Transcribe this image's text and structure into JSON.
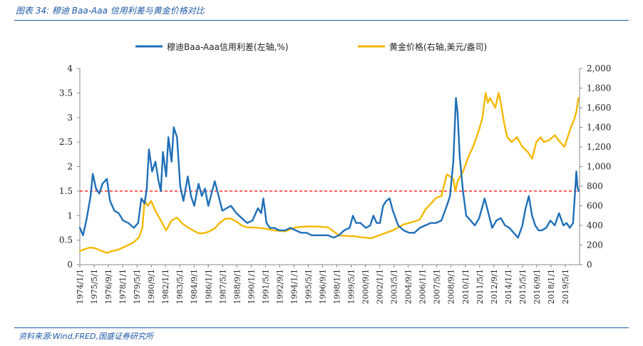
{
  "header": {
    "title": "图表 34:  穆迪 Baa-Aaa 信用利差与黄金价格对比"
  },
  "footer": {
    "source": "资料来源:Wind,FRED,国盛证券研究所"
  },
  "chart_data": {
    "type": "line",
    "title": "",
    "legend_position": "top",
    "grid": false,
    "x_tick_labels": [
      "1974/1/1",
      "1975/5/1",
      "1976/9/1",
      "1978/1/1",
      "1979/5/1",
      "1980/9/1",
      "1982/1/1",
      "1983/5/1",
      "1984/9/1",
      "1986/1/1",
      "1987/5/1",
      "1988/9/1",
      "1990/1/1",
      "1991/5/1",
      "1992/9/1",
      "1994/1/1",
      "1995/5/1",
      "1996/9/1",
      "1998/1/1",
      "1999/5/1",
      "2000/9/1",
      "2002/1/1",
      "2003/5/1",
      "2004/9/1",
      "2006/1/1",
      "2007/5/1",
      "2008/9/1",
      "2010/1/1",
      "2011/5/1",
      "2012/9/1",
      "2014/1/1",
      "2015/5/1",
      "2016/9/1",
      "2018/1/1",
      "2019/5/1"
    ],
    "x_range": [
      1974.0,
      2020.3
    ],
    "y_left": {
      "range": [
        0,
        4
      ],
      "ticks": [
        "0",
        "0.5",
        "1",
        "1.5",
        "2",
        "2.5",
        "3",
        "3.5",
        "4"
      ]
    },
    "y_right": {
      "range": [
        0,
        2000
      ],
      "ticks": [
        "0",
        "200",
        "400",
        "600",
        "800",
        "1,000",
        "1,200",
        "1,400",
        "1,600",
        "1,800",
        "2,000"
      ]
    },
    "reference_line": {
      "value": 1.5,
      "axis": "left",
      "color": "#ff0000",
      "style": "dashed"
    },
    "series": [
      {
        "name": "穆迪Baa-Aaa信用利差(左轴,%)",
        "axis": "left",
        "color": "#1f6fb8",
        "x": [
          1974.0,
          1974.3,
          1974.6,
          1975.0,
          1975.2,
          1975.5,
          1975.8,
          1976.1,
          1976.5,
          1976.8,
          1977.2,
          1977.6,
          1978.0,
          1978.5,
          1979.0,
          1979.4,
          1979.7,
          1980.0,
          1980.2,
          1980.4,
          1980.7,
          1981.0,
          1981.3,
          1981.5,
          1981.7,
          1982.0,
          1982.2,
          1982.5,
          1982.7,
          1983.0,
          1983.3,
          1983.6,
          1984.0,
          1984.3,
          1984.6,
          1985.0,
          1985.3,
          1985.6,
          1985.9,
          1986.2,
          1986.5,
          1986.8,
          1987.2,
          1987.6,
          1988.0,
          1988.5,
          1989.0,
          1989.5,
          1990.0,
          1990.5,
          1990.8,
          1991.0,
          1991.3,
          1991.6,
          1992.0,
          1992.5,
          1993.0,
          1993.5,
          1994.0,
          1994.5,
          1995.0,
          1995.5,
          1996.0,
          1996.5,
          1997.0,
          1997.5,
          1998.0,
          1998.5,
          1999.0,
          1999.3,
          1999.6,
          2000.0,
          2000.5,
          2000.9,
          2001.2,
          2001.5,
          2001.8,
          2002.1,
          2002.4,
          2002.7,
          2003.0,
          2003.5,
          2004.0,
          2004.5,
          2005.0,
          2005.5,
          2006.0,
          2006.5,
          2007.0,
          2007.5,
          2008.0,
          2008.3,
          2008.6,
          2008.85,
          2009.0,
          2009.2,
          2009.5,
          2009.8,
          2010.2,
          2010.6,
          2011.0,
          2011.5,
          2011.8,
          2012.2,
          2012.6,
          2013.0,
          2013.4,
          2013.8,
          2014.2,
          2014.6,
          2015.0,
          2015.3,
          2015.6,
          2015.9,
          2016.2,
          2016.5,
          2016.8,
          2017.2,
          2017.6,
          2018.0,
          2018.4,
          2018.8,
          2019.1,
          2019.4,
          2019.7,
          2020.0,
          2020.1,
          2020.2
        ],
        "values": [
          0.75,
          0.6,
          0.9,
          1.4,
          1.85,
          1.55,
          1.45,
          1.65,
          1.75,
          1.3,
          1.1,
          1.05,
          0.9,
          0.85,
          0.75,
          0.85,
          1.35,
          1.25,
          1.55,
          2.35,
          1.9,
          2.1,
          1.7,
          1.5,
          2.3,
          1.8,
          2.6,
          2.1,
          2.8,
          2.6,
          1.6,
          1.3,
          1.8,
          1.4,
          1.2,
          1.65,
          1.4,
          1.55,
          1.2,
          1.45,
          1.7,
          1.45,
          1.1,
          1.15,
          1.2,
          1.05,
          0.95,
          0.85,
          0.9,
          1.15,
          1.05,
          1.35,
          0.85,
          0.75,
          0.75,
          0.7,
          0.7,
          0.75,
          0.7,
          0.65,
          0.65,
          0.6,
          0.6,
          0.6,
          0.6,
          0.55,
          0.6,
          0.7,
          0.75,
          1.0,
          0.85,
          0.85,
          0.75,
          0.8,
          1.0,
          0.85,
          0.85,
          1.2,
          1.3,
          1.35,
          1.1,
          0.8,
          0.7,
          0.65,
          0.65,
          0.75,
          0.8,
          0.85,
          0.85,
          0.9,
          1.2,
          1.4,
          2.1,
          3.4,
          3.1,
          2.2,
          1.5,
          1.0,
          0.9,
          0.8,
          0.95,
          1.35,
          1.1,
          0.75,
          0.9,
          0.95,
          0.8,
          0.75,
          0.65,
          0.55,
          0.8,
          1.15,
          1.4,
          1.0,
          0.8,
          0.7,
          0.7,
          0.75,
          0.9,
          0.8,
          1.05,
          0.8,
          0.85,
          0.75,
          0.85,
          1.9,
          1.6,
          1.5
        ]
      },
      {
        "name": "黄金价格(右轴,美元/盎司)",
        "axis": "right",
        "color": "#f5b800",
        "x": [
          1974.0,
          1974.5,
          1975.0,
          1975.5,
          1976.0,
          1976.5,
          1977.0,
          1977.5,
          1978.0,
          1978.5,
          1979.0,
          1979.5,
          1979.8,
          1980.0,
          1980.3,
          1980.6,
          1981.0,
          1981.5,
          1982.0,
          1982.5,
          1983.0,
          1983.5,
          1984.0,
          1984.5,
          1985.0,
          1985.5,
          1986.0,
          1986.5,
          1987.0,
          1987.5,
          1988.0,
          1988.5,
          1989.0,
          1989.5,
          1990.0,
          1991.0,
          1992.0,
          1993.0,
          1994.0,
          1995.0,
          1996.0,
          1997.0,
          1997.5,
          1998.0,
          1999.0,
          1999.5,
          2000.0,
          2001.0,
          2002.0,
          2003.0,
          2004.0,
          2005.0,
          2005.5,
          2006.0,
          2006.5,
          2007.0,
          2007.5,
          2008.0,
          2008.3,
          2008.6,
          2008.8,
          2009.0,
          2009.5,
          2010.0,
          2010.5,
          2011.0,
          2011.3,
          2011.6,
          2011.8,
          2012.0,
          2012.5,
          2012.8,
          2013.0,
          2013.3,
          2013.6,
          2014.0,
          2014.5,
          2015.0,
          2015.5,
          2015.9,
          2016.3,
          2016.7,
          2017.0,
          2017.5,
          2018.0,
          2018.5,
          2018.9,
          2019.2,
          2019.5,
          2019.8,
          2020.0,
          2020.2
        ],
        "values": [
          140,
          160,
          175,
          165,
          140,
          120,
          140,
          150,
          175,
          200,
          230,
          280,
          380,
          650,
          600,
          650,
          550,
          450,
          350,
          450,
          480,
          420,
          380,
          350,
          320,
          320,
          340,
          370,
          430,
          470,
          470,
          440,
          400,
          380,
          380,
          370,
          350,
          340,
          380,
          390,
          390,
          380,
          340,
          300,
          290,
          290,
          280,
          270,
          310,
          350,
          410,
          440,
          460,
          560,
          620,
          680,
          700,
          920,
          900,
          870,
          750,
          850,
          950,
          1100,
          1220,
          1380,
          1500,
          1750,
          1650,
          1700,
          1600,
          1750,
          1650,
          1450,
          1300,
          1250,
          1300,
          1200,
          1150,
          1080,
          1250,
          1300,
          1250,
          1270,
          1320,
          1250,
          1200,
          1300,
          1400,
          1480,
          1560,
          1700
        ]
      }
    ]
  }
}
